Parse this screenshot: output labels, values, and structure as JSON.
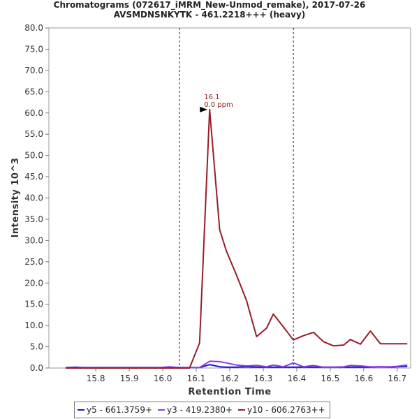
{
  "chart_data": {
    "type": "line",
    "title": "Chromatograms (072617_iMRM_New-Unmod_remake), 2017-07-26",
    "subtitle": "AVSMDNSNKYTK - 461.2218+++ (heavy)",
    "xlabel": "Retention Time",
    "ylabel": "Intensity 10^3",
    "xlim": [
      15.66,
      16.74
    ],
    "ylim": [
      0,
      80
    ],
    "x_ticks": [
      "15.8",
      "15.9",
      "16.0",
      "16.1",
      "16.2",
      "16.3",
      "16.4",
      "16.5",
      "16.6",
      "16.7"
    ],
    "y_ticks": [
      "0.0",
      "5.0",
      "10.0",
      "15.0",
      "20.0",
      "25.0",
      "30.0",
      "35.0",
      "40.0",
      "45.0",
      "50.0",
      "55.0",
      "60.0",
      "65.0",
      "70.0",
      "75.0",
      "80.0"
    ],
    "vertical_lines": [
      16.05,
      16.39
    ],
    "annotation": {
      "x": 16.14,
      "y": 60.8,
      "label_line1": "16.1",
      "label_line2": "0.0 ppm"
    },
    "legend_placement": "bottom",
    "series": [
      {
        "name": "y5 - 661.3759+",
        "color": "#1414c8",
        "x": [
          15.71,
          15.74,
          15.76,
          15.79,
          15.82,
          15.85,
          15.88,
          15.91,
          15.93,
          15.96,
          15.99,
          16.02,
          16.05,
          16.08,
          16.11,
          16.14,
          16.17,
          16.19,
          16.22,
          16.25,
          16.28,
          16.31,
          16.33,
          16.36,
          16.39,
          16.42,
          16.45,
          16.48,
          16.51,
          16.54,
          16.56,
          16.59,
          16.62,
          16.65,
          16.68,
          16.7,
          16.73
        ],
        "values": [
          0.1,
          0.2,
          0.1,
          0.1,
          0.1,
          0.1,
          0.1,
          0.1,
          0.1,
          0.1,
          0.1,
          0.2,
          0.1,
          0.1,
          0.1,
          0.8,
          0.3,
          0.2,
          0.2,
          0.3,
          0.2,
          0.2,
          0.2,
          0.2,
          0.2,
          0.2,
          0.2,
          0.2,
          0.2,
          0.2,
          0.2,
          0.2,
          0.2,
          0.3,
          0.2,
          0.3,
          0.4
        ]
      },
      {
        "name": "y3 - 419.2380+",
        "color": "#8c3ce6",
        "x": [
          15.71,
          15.74,
          15.76,
          15.79,
          15.82,
          15.85,
          15.88,
          15.91,
          15.93,
          15.96,
          15.99,
          16.02,
          16.05,
          16.08,
          16.11,
          16.14,
          16.17,
          16.19,
          16.22,
          16.25,
          16.28,
          16.31,
          16.33,
          16.36,
          16.39,
          16.42,
          16.45,
          16.48,
          16.51,
          16.54,
          16.56,
          16.59,
          16.62,
          16.65,
          16.68,
          16.7,
          16.73
        ],
        "values": [
          0.1,
          0.1,
          0.1,
          0.1,
          0.1,
          0.1,
          0.1,
          0.1,
          0.1,
          0.1,
          0.1,
          0.3,
          0.1,
          0.1,
          0.1,
          1.6,
          1.5,
          1.2,
          0.7,
          0.5,
          0.6,
          0.3,
          0.7,
          0.3,
          1.2,
          0.3,
          0.6,
          0.2,
          0.2,
          0.3,
          0.6,
          0.5,
          0.3,
          0.3,
          0.3,
          0.4,
          0.7
        ]
      },
      {
        "name": "y10 - 606.2763++",
        "color": "#961e28",
        "x": [
          15.71,
          15.74,
          15.76,
          15.79,
          15.82,
          15.85,
          15.88,
          15.91,
          15.93,
          15.96,
          15.99,
          16.02,
          16.05,
          16.08,
          16.11,
          16.14,
          16.17,
          16.19,
          16.22,
          16.25,
          16.28,
          16.31,
          16.33,
          16.36,
          16.39,
          16.42,
          16.45,
          16.48,
          16.51,
          16.54,
          16.56,
          16.59,
          16.62,
          16.65,
          16.68,
          16.7,
          16.73
        ],
        "values": [
          0,
          0,
          0,
          0,
          0,
          0,
          0,
          0,
          0,
          0,
          0,
          0,
          0,
          0,
          5.9,
          60.8,
          32.5,
          27.5,
          21.9,
          15.9,
          7.4,
          9.4,
          12.7,
          9.7,
          6.6,
          7.6,
          8.4,
          6.2,
          5.2,
          5.4,
          6.7,
          5.6,
          8.7,
          5.7,
          5.7,
          5.7,
          5.7
        ]
      }
    ]
  }
}
